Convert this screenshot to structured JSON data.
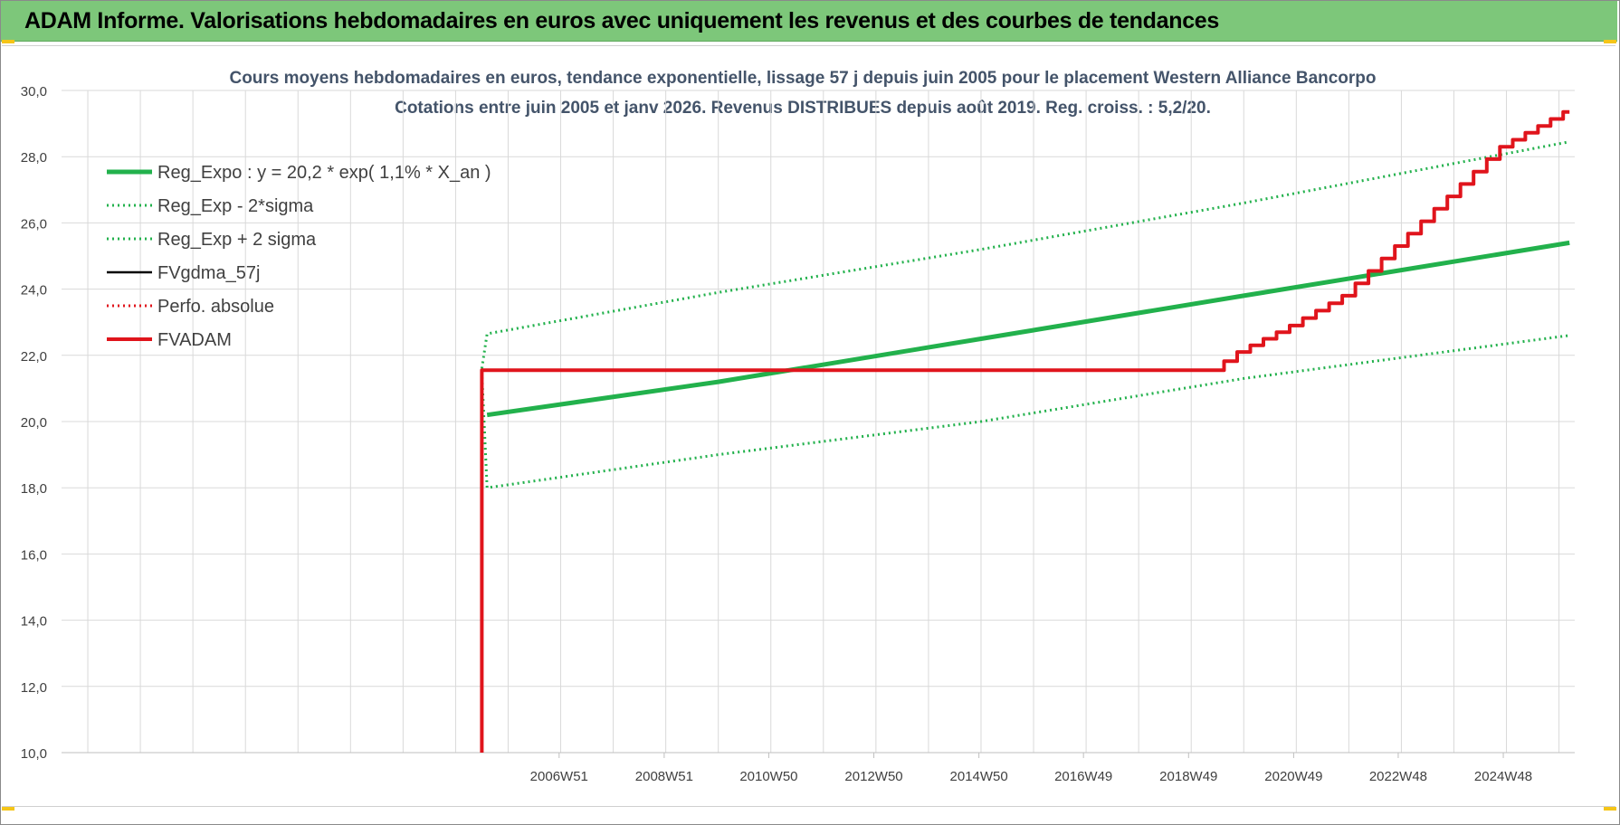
{
  "header": {
    "title": "ADAM Informe. Valorisations hebdomadaires en euros avec uniquement les revenus et des courbes de tendances"
  },
  "colors": {
    "header_bg": "#7dc77a",
    "reg_green": "#22b14c",
    "adam_red": "#e0141c",
    "grid": "#d9d9d9"
  },
  "chart_data": {
    "type": "line",
    "title_lines": [
      "Cours moyens hebdomadaires en euros, tendance exponentielle, lissage 57 j depuis juin 2005 pour le placement Western Alliance Bancorpo",
      "Cotations entre juin 2005 et janv 2026.  Revenus DISTRIBUES depuis août 2019.  Reg. croiss. : 5,2/20."
    ],
    "xlabel": "",
    "ylabel": "",
    "x_unit": "year",
    "xlim": [
      1997.5,
      2026.3
    ],
    "ylim": [
      10,
      30
    ],
    "y_ticks": [
      "10,0",
      "12,0",
      "14,0",
      "16,0",
      "18,0",
      "20,0",
      "22,0",
      "24,0",
      "26,0",
      "28,0",
      "30,0"
    ],
    "x_ticks": [
      {
        "label": "2006W51",
        "x": 2006.97
      },
      {
        "label": "2008W51",
        "x": 2008.97
      },
      {
        "label": "2010W50",
        "x": 2010.96
      },
      {
        "label": "2012W50",
        "x": 2012.96
      },
      {
        "label": "2014W50",
        "x": 2014.96
      },
      {
        "label": "2016W49",
        "x": 2016.95
      },
      {
        "label": "2018W49",
        "x": 2018.95
      },
      {
        "label": "2020W49",
        "x": 2020.95
      },
      {
        "label": "2022W48",
        "x": 2022.94
      },
      {
        "label": "2024W48",
        "x": 2024.94
      }
    ],
    "grid": true,
    "legend_position": "top-left",
    "series": [
      {
        "name": "Reg_Expo : y = 20,2 * exp( 1,1% *  X_an )",
        "style": "solid-thick",
        "color": "#22b14c",
        "x": [
          2005.6,
          2010.0,
          2015.0,
          2020.0,
          2026.2
        ],
        "y": [
          20.2,
          21.2,
          22.5,
          23.8,
          25.4
        ]
      },
      {
        "name": "Reg_Exp - 2*sigma",
        "style": "dotted",
        "color": "#22b14c",
        "x": [
          2005.5,
          2005.6,
          2010.0,
          2015.0,
          2020.0,
          2026.2
        ],
        "y": [
          21.5,
          18.0,
          19.0,
          20.0,
          21.3,
          22.6
        ]
      },
      {
        "name": "Reg_Exp + 2 sigma",
        "style": "dotted",
        "color": "#22b14c",
        "x": [
          2005.5,
          2005.6,
          2010.0,
          2015.0,
          2020.0,
          2026.2
        ],
        "y": [
          21.6,
          22.65,
          23.9,
          25.2,
          26.6,
          28.45
        ]
      },
      {
        "name": "FVgdma_57j",
        "style": "solid",
        "color": "#000000",
        "x": [],
        "y": []
      },
      {
        "name": "Perfo. absolue",
        "style": "dotted",
        "color": "#e0141c",
        "x": [],
        "y": []
      },
      {
        "name": "FVADAM",
        "style": "solid-thick-stepped",
        "color": "#e0141c",
        "x": [
          2005.5,
          2005.5,
          2019.5,
          2020.0,
          2021.0,
          2022.0,
          2023.0,
          2024.0,
          2025.0,
          2026.2
        ],
        "y": [
          10.0,
          21.55,
          21.55,
          22.1,
          22.9,
          23.8,
          25.3,
          26.8,
          28.3,
          29.35
        ]
      }
    ]
  }
}
